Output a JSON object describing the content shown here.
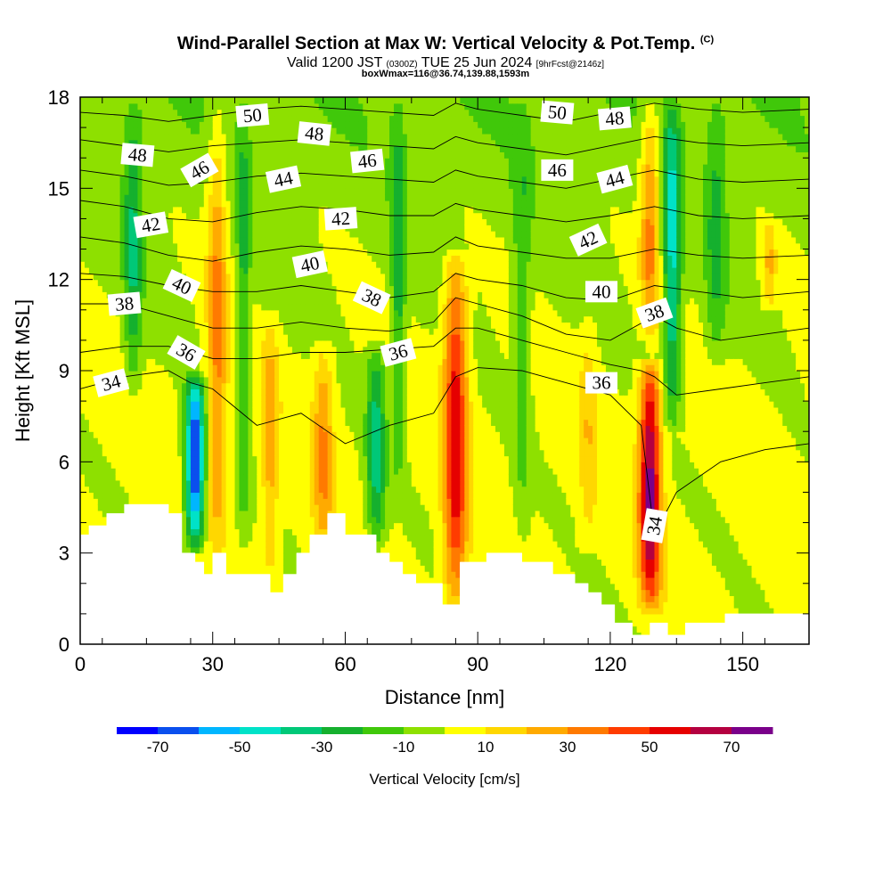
{
  "title": {
    "main": "Wind-Parallel Section at Max W: Vertical Velocity & Pot.Temp.",
    "copyright": "(C)",
    "valid_prefix": "Valid 1200 JST",
    "utc": "(0300Z)",
    "valid_date": "TUE 25 Jun 2024",
    "forecast": "[9hrFcst@2146z]",
    "box_info": "boxWmax=116@36.74,139.88,1593m"
  },
  "chart_data": {
    "type": "heatmap",
    "xlabel": "Distance [nm]",
    "ylabel": "Height [Kft MSL]",
    "xlim": [
      0,
      165
    ],
    "ylim": [
      0,
      18
    ],
    "xticks": [
      0,
      30,
      60,
      90,
      120,
      150
    ],
    "yticks": [
      0,
      3,
      6,
      9,
      12,
      15,
      18
    ],
    "colorbar": {
      "label": "Vertical Velocity [cm/s]",
      "tick_values": [
        -70,
        -50,
        -30,
        -10,
        10,
        30,
        50,
        70
      ],
      "levels": [
        -80,
        -70,
        -60,
        -50,
        -40,
        -30,
        -20,
        -10,
        0,
        10,
        20,
        30,
        40,
        50,
        60,
        70,
        80
      ],
      "colors": [
        "#0000ff",
        "#0a4fee",
        "#00b6ff",
        "#00e2c8",
        "#00c878",
        "#15b02e",
        "#40c80a",
        "#8ee000",
        "#ffff00",
        "#ffd700",
        "#ffaa00",
        "#ff7a00",
        "#ff3c00",
        "#e60000",
        "#b40040",
        "#7a008a"
      ]
    },
    "updraft_columns": [
      {
        "x": 26,
        "w": 2.2,
        "peak": -75,
        "zmin": 3,
        "zmax": 9
      },
      {
        "x": 12,
        "w": 2.0,
        "peak": -28,
        "zmin": 8,
        "zmax": 18
      },
      {
        "x": 31,
        "w": 2.2,
        "peak": 32,
        "zmin": 3,
        "zmax": 18
      },
      {
        "x": 43,
        "w": 1.8,
        "peak": 22,
        "zmin": 2,
        "zmax": 11
      },
      {
        "x": 37,
        "w": 1.4,
        "peak": -22,
        "zmin": 3,
        "zmax": 18
      },
      {
        "x": 55,
        "w": 2.2,
        "peak": 28,
        "zmin": 3,
        "zmax": 10
      },
      {
        "x": 67,
        "w": 2.2,
        "peak": -36,
        "zmin": 3,
        "zmax": 10
      },
      {
        "x": 72,
        "w": 1.6,
        "peak": -25,
        "zmin": 5,
        "zmax": 18
      },
      {
        "x": 85,
        "w": 2.6,
        "peak": 55,
        "zmin": 1,
        "zmax": 13
      },
      {
        "x": 100,
        "w": 2.0,
        "peak": -16,
        "zmin": 3,
        "zmax": 18
      },
      {
        "x": 115,
        "w": 2.0,
        "peak": 14,
        "zmin": 3,
        "zmax": 11
      },
      {
        "x": 129,
        "w": 2.4,
        "peak": 72,
        "zmin": 1,
        "zmax": 9.5
      },
      {
        "x": 129,
        "w": 2.2,
        "peak": 34,
        "zmin": 10,
        "zmax": 18
      },
      {
        "x": 134,
        "w": 2.0,
        "peak": -42,
        "zmin": 7,
        "zmax": 18
      },
      {
        "x": 144,
        "w": 2.4,
        "peak": -20,
        "zmin": 9,
        "zmax": 18
      },
      {
        "x": 156,
        "w": 1.6,
        "peak": 22,
        "zmin": 11,
        "zmax": 14
      }
    ],
    "terrain": {
      "x": [
        0,
        2,
        2,
        6,
        6,
        10,
        10,
        20,
        20,
        23,
        23,
        26,
        26,
        28,
        28,
        30,
        30,
        33,
        33,
        43,
        43,
        46,
        46,
        49,
        49,
        52,
        52,
        56,
        56,
        60,
        60,
        67,
        67,
        70,
        70,
        73,
        73,
        76,
        76,
        82,
        82,
        86,
        86,
        92,
        92,
        100,
        100,
        107,
        107,
        112,
        112,
        115,
        115,
        118,
        118,
        121,
        121,
        125,
        125,
        129,
        129,
        133,
        133,
        137,
        137,
        146,
        146,
        154,
        154,
        165
      ],
      "z": [
        3.6,
        3.6,
        3.9,
        3.9,
        4.3,
        4.3,
        4.6,
        4.6,
        4.3,
        4.3,
        3.0,
        3.0,
        2.7,
        2.7,
        2.3,
        2.3,
        3.0,
        3.0,
        2.3,
        2.3,
        1.7,
        1.7,
        2.3,
        2.3,
        3.0,
        3.0,
        3.6,
        3.6,
        4.3,
        4.3,
        3.6,
        3.6,
        3.0,
        3.0,
        2.7,
        2.7,
        2.3,
        2.3,
        2.0,
        2.0,
        1.3,
        1.3,
        2.7,
        2.7,
        3.0,
        3.0,
        2.7,
        2.7,
        2.3,
        2.3,
        2.0,
        2.0,
        1.7,
        1.7,
        1.3,
        1.3,
        0.7,
        0.7,
        0.3,
        0.3,
        0.7,
        0.7,
        0.3,
        0.3,
        0.7,
        0.7,
        1.0,
        1.0,
        1.0,
        1.0
      ]
    },
    "isentropes": [
      {
        "label": "34",
        "x": [
          0,
          10,
          20,
          25,
          30,
          40,
          50,
          60,
          70,
          80,
          85,
          90,
          100,
          110,
          120,
          127,
          130,
          135,
          145,
          155,
          165
        ],
        "z": [
          8.4,
          8.8,
          9.0,
          8.6,
          8.4,
          7.2,
          7.6,
          6.6,
          7.2,
          7.6,
          8.8,
          9.1,
          9.0,
          8.6,
          8.2,
          7.2,
          3.6,
          5.0,
          6.0,
          6.4,
          6.6
        ]
      },
      {
        "label": "36",
        "x": [
          0,
          10,
          20,
          30,
          40,
          50,
          60,
          70,
          80,
          85,
          90,
          100,
          110,
          120,
          127,
          130,
          135,
          145,
          155,
          165
        ],
        "z": [
          9.6,
          9.8,
          9.8,
          9.4,
          9.4,
          9.6,
          9.6,
          9.7,
          9.8,
          10.4,
          10.4,
          10.0,
          9.6,
          9.2,
          9.0,
          8.8,
          8.2,
          8.4,
          8.6,
          8.8
        ]
      },
      {
        "label": "38",
        "x": [
          0,
          10,
          20,
          30,
          40,
          50,
          60,
          70,
          80,
          85,
          90,
          100,
          110,
          120,
          130,
          135,
          145,
          155,
          165
        ],
        "z": [
          11.2,
          11.2,
          10.8,
          10.4,
          10.4,
          10.6,
          10.4,
          10.3,
          10.6,
          11.4,
          11.2,
          10.8,
          10.2,
          10.0,
          10.8,
          10.4,
          10.0,
          10.2,
          10.4
        ]
      },
      {
        "label": "40",
        "x": [
          0,
          10,
          20,
          30,
          40,
          50,
          60,
          70,
          80,
          85,
          90,
          100,
          110,
          120,
          130,
          140,
          150,
          165
        ],
        "z": [
          12.2,
          12.1,
          11.8,
          11.6,
          11.6,
          11.8,
          11.6,
          11.4,
          11.6,
          12.2,
          12.0,
          11.8,
          11.4,
          11.3,
          11.8,
          11.6,
          11.4,
          11.6
        ]
      },
      {
        "label": "42",
        "x": [
          0,
          10,
          20,
          30,
          40,
          50,
          60,
          70,
          80,
          85,
          90,
          100,
          110,
          120,
          130,
          140,
          150,
          165
        ],
        "z": [
          13.4,
          13.2,
          12.8,
          12.6,
          12.9,
          13.1,
          13.0,
          12.8,
          12.9,
          13.4,
          13.1,
          12.9,
          12.7,
          12.7,
          13.0,
          12.8,
          12.7,
          12.8
        ]
      },
      {
        "label": "44",
        "x": [
          0,
          10,
          20,
          30,
          40,
          50,
          60,
          70,
          80,
          85,
          90,
          100,
          110,
          120,
          130,
          140,
          150,
          165
        ],
        "z": [
          14.6,
          14.4,
          14.0,
          13.9,
          14.2,
          14.4,
          14.3,
          14.1,
          14.1,
          14.5,
          14.3,
          14.1,
          13.9,
          14.1,
          14.4,
          14.1,
          14.0,
          14.1
        ]
      },
      {
        "label": "46",
        "x": [
          0,
          10,
          20,
          30,
          40,
          50,
          60,
          70,
          80,
          85,
          90,
          100,
          110,
          120,
          130,
          140,
          150,
          165
        ],
        "z": [
          15.6,
          15.4,
          15.1,
          15.2,
          15.4,
          15.5,
          15.4,
          15.3,
          15.2,
          15.6,
          15.4,
          15.2,
          15.0,
          15.3,
          15.6,
          15.3,
          15.2,
          15.3
        ]
      },
      {
        "label": "48",
        "x": [
          0,
          10,
          20,
          30,
          40,
          50,
          60,
          70,
          80,
          85,
          90,
          100,
          110,
          120,
          130,
          140,
          150,
          165
        ],
        "z": [
          16.6,
          16.4,
          16.2,
          16.4,
          16.5,
          16.6,
          16.5,
          16.4,
          16.3,
          16.7,
          16.5,
          16.3,
          16.1,
          16.4,
          16.7,
          16.5,
          16.4,
          16.5
        ]
      },
      {
        "label": "50",
        "x": [
          0,
          10,
          20,
          30,
          40,
          50,
          60,
          70,
          80,
          85,
          90,
          100,
          110,
          120,
          130,
          140,
          150,
          165
        ],
        "z": [
          17.5,
          17.4,
          17.2,
          17.4,
          17.6,
          17.7,
          17.6,
          17.5,
          17.4,
          17.8,
          17.6,
          17.4,
          17.2,
          17.5,
          17.8,
          17.6,
          17.5,
          17.6
        ]
      }
    ],
    "contour_labels": [
      {
        "text": "50",
        "x": 39,
        "y": 17.4,
        "rot": -5
      },
      {
        "text": "48",
        "x": 53,
        "y": 16.8,
        "rot": 6
      },
      {
        "text": "48",
        "x": 13,
        "y": 16.1,
        "rot": 5
      },
      {
        "text": "46",
        "x": 27,
        "y": 15.6,
        "rot": -30
      },
      {
        "text": "46",
        "x": 65,
        "y": 15.9,
        "rot": -6
      },
      {
        "text": "50",
        "x": 108,
        "y": 17.5,
        "rot": 5
      },
      {
        "text": "48",
        "x": 121,
        "y": 17.3,
        "rot": -5
      },
      {
        "text": "46",
        "x": 108,
        "y": 15.6,
        "rot": 0
      },
      {
        "text": "44",
        "x": 46,
        "y": 15.3,
        "rot": -12
      },
      {
        "text": "44",
        "x": 121,
        "y": 15.3,
        "rot": -15
      },
      {
        "text": "42",
        "x": 16,
        "y": 13.8,
        "rot": -10
      },
      {
        "text": "42",
        "x": 59,
        "y": 14.0,
        "rot": -4
      },
      {
        "text": "42",
        "x": 115,
        "y": 13.3,
        "rot": -25
      },
      {
        "text": "40",
        "x": 52,
        "y": 12.5,
        "rot": -12
      },
      {
        "text": "40",
        "x": 23,
        "y": 11.8,
        "rot": 25
      },
      {
        "text": "40",
        "x": 118,
        "y": 11.6,
        "rot": 0
      },
      {
        "text": "38",
        "x": 10,
        "y": 11.2,
        "rot": -5
      },
      {
        "text": "38",
        "x": 66,
        "y": 11.4,
        "rot": 25
      },
      {
        "text": "38",
        "x": 130,
        "y": 10.9,
        "rot": -20
      },
      {
        "text": "36",
        "x": 24,
        "y": 9.6,
        "rot": 30
      },
      {
        "text": "36",
        "x": 72,
        "y": 9.6,
        "rot": -15
      },
      {
        "text": "36",
        "x": 118,
        "y": 8.6,
        "rot": 0
      },
      {
        "text": "34",
        "x": 7,
        "y": 8.6,
        "rot": -15
      },
      {
        "text": "34",
        "x": 130,
        "y": 3.9,
        "rot": -80
      }
    ]
  }
}
